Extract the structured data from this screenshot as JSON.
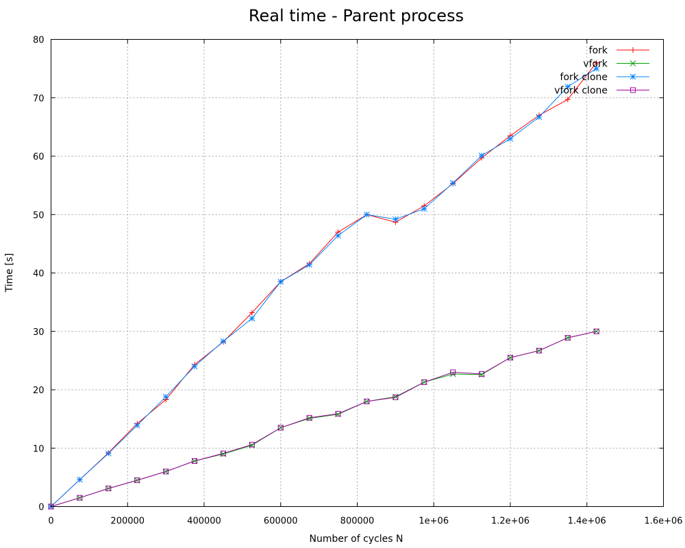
{
  "chart_data": {
    "type": "line",
    "title": "Real time - Parent process",
    "xlabel": "Number of cycles N",
    "ylabel": "Time [s]",
    "xlim": [
      0,
      1600000
    ],
    "ylim": [
      0,
      80
    ],
    "x_ticks": [
      {
        "value": 0,
        "label": "0"
      },
      {
        "value": 200000,
        "label": "200000"
      },
      {
        "value": 400000,
        "label": "400000"
      },
      {
        "value": 600000,
        "label": "600000"
      },
      {
        "value": 800000,
        "label": "800000"
      },
      {
        "value": 1000000,
        "label": "1e+06"
      },
      {
        "value": 1200000,
        "label": "1.2e+06"
      },
      {
        "value": 1400000,
        "label": "1.4e+06"
      },
      {
        "value": 1600000,
        "label": "1.6e+06"
      }
    ],
    "y_ticks": [
      {
        "value": 0,
        "label": "0"
      },
      {
        "value": 10,
        "label": "10"
      },
      {
        "value": 20,
        "label": "20"
      },
      {
        "value": 30,
        "label": "30"
      },
      {
        "value": 40,
        "label": "40"
      },
      {
        "value": 50,
        "label": "50"
      },
      {
        "value": 60,
        "label": "60"
      },
      {
        "value": 70,
        "label": "70"
      },
      {
        "value": 80,
        "label": "80"
      }
    ],
    "grid": true,
    "legend_position": "top-right",
    "x": [
      0,
      75000,
      150000,
      225000,
      300000,
      375000,
      450000,
      525000,
      600000,
      675000,
      750000,
      825000,
      900000,
      975000,
      1050000,
      1125000,
      1200000,
      1275000,
      1350000,
      1425000
    ],
    "series": [
      {
        "name": "fork",
        "color": "#ff0000",
        "marker": "plus",
        "values": [
          0,
          4.6,
          9.2,
          14.2,
          18.3,
          24.3,
          28.2,
          33.2,
          38.5,
          41.6,
          47.0,
          50.0,
          48.7,
          51.5,
          55.3,
          59.7,
          63.5,
          67.0,
          69.7,
          76.0
        ]
      },
      {
        "name": "vfork",
        "color": "#00a000",
        "marker": "cross",
        "values": [
          0,
          1.5,
          3.1,
          4.5,
          6.0,
          7.8,
          9.0,
          10.5,
          13.5,
          15.1,
          15.8,
          18.0,
          18.8,
          21.3,
          22.7,
          22.6,
          25.5,
          26.7,
          28.9,
          30.0
        ]
      },
      {
        "name": "fork clone",
        "color": "#0080ff",
        "marker": "star",
        "values": [
          0,
          4.6,
          9.1,
          13.9,
          18.8,
          24.0,
          28.3,
          32.2,
          38.5,
          41.4,
          46.4,
          50.0,
          49.2,
          51.0,
          55.4,
          60.1,
          63.0,
          66.7,
          71.9,
          75.0
        ]
      },
      {
        "name": "vfork clone",
        "color": "#a000a0",
        "marker": "square",
        "values": [
          0,
          1.5,
          3.1,
          4.5,
          6.0,
          7.8,
          9.1,
          10.6,
          13.5,
          15.2,
          15.9,
          18.0,
          18.7,
          21.3,
          23.0,
          22.7,
          25.5,
          26.7,
          28.9,
          30.0
        ]
      }
    ]
  }
}
